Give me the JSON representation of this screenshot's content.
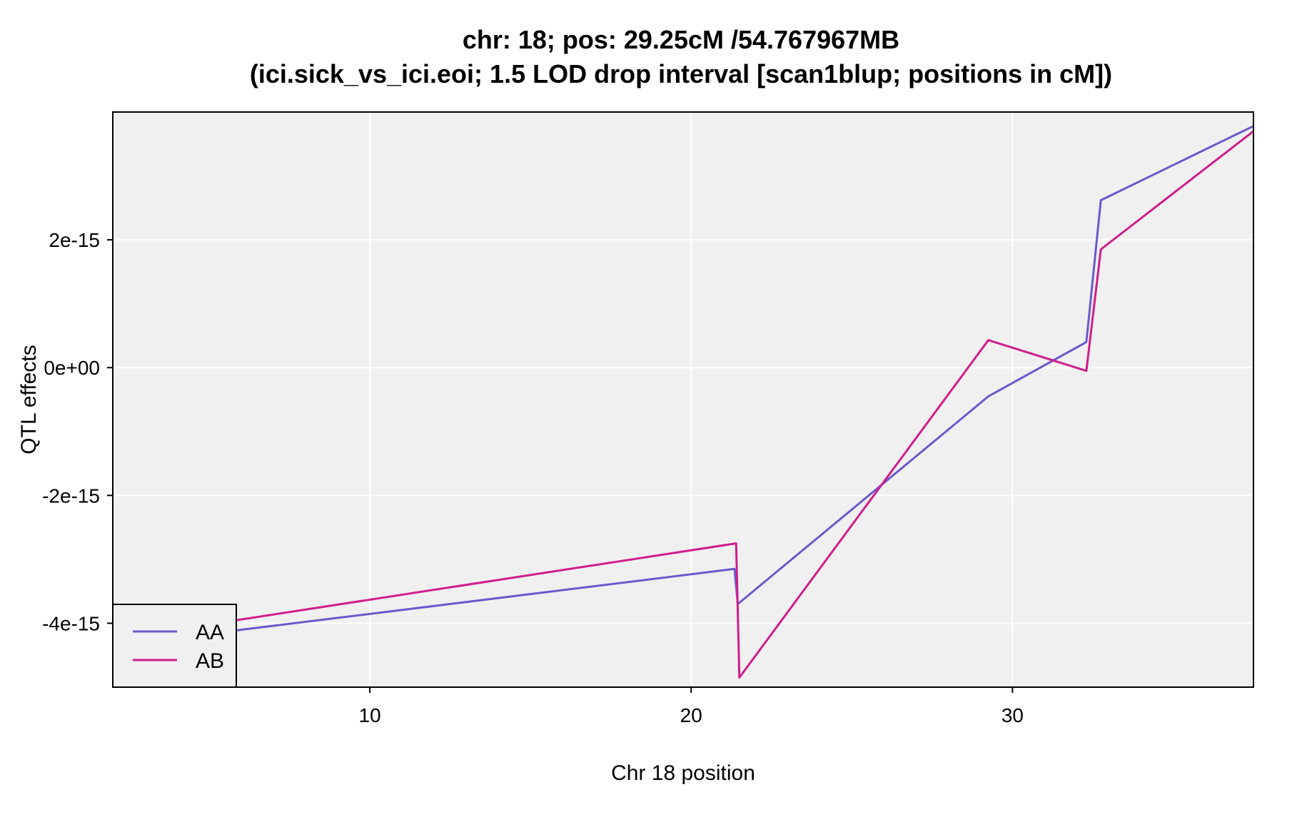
{
  "chart_data": {
    "type": "line",
    "title": "chr: 18; pos: 29.25cM /54.767967MB",
    "subtitle": "(ici.sick_vs_ici.eoi; 1.5 LOD drop interval [scan1blup; positions in cM])",
    "xlabel": "Chr 18 position",
    "ylabel": "QTL effects",
    "xlim": [
      2.0,
      37.5
    ],
    "ylim": [
      -5e-15,
      4e-15
    ],
    "xticks": [
      10,
      20,
      30
    ],
    "xtick_labels": [
      "10",
      "20",
      "30"
    ],
    "yticks": [
      -4e-15,
      -2e-15,
      0,
      2e-15
    ],
    "ytick_labels": [
      "-4e-15",
      "-2e-15",
      "0e+00",
      "2e-15"
    ],
    "grid": true,
    "background": "#f0f0f0",
    "legend_position": "bottom-left",
    "series": [
      {
        "name": "AA",
        "color": "#6a5acd",
        "x": [
          2.0,
          21.35,
          21.45,
          29.25,
          32.3,
          32.75,
          37.5
        ],
        "y": [
          -4.35e-15,
          -3.15e-15,
          -3.7e-15,
          -4.5e-16,
          4e-16,
          2.62e-15,
          3.78e-15
        ]
      },
      {
        "name": "AB",
        "color": "#d11d8c",
        "x": [
          2.0,
          21.4,
          21.5,
          29.25,
          32.3,
          32.75,
          37.5
        ],
        "y": [
          -4.25e-15,
          -2.75e-15,
          -4.85e-15,
          4.3e-16,
          -5e-17,
          1.85e-15,
          3.7e-15
        ]
      }
    ]
  }
}
